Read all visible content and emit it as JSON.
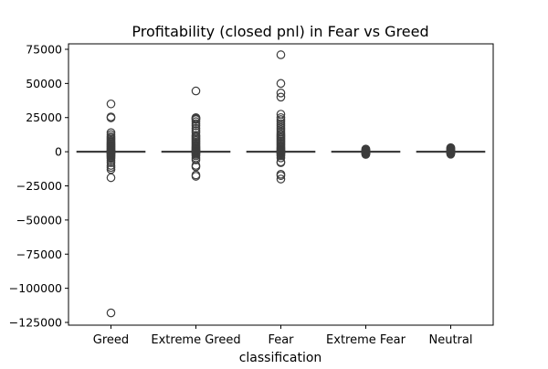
{
  "chart_data": {
    "type": "box",
    "title": "Profitability (closed pnl) in Fear vs Greed",
    "xlabel": "classification",
    "ylabel": "",
    "categories": [
      "Greed",
      "Extreme Greed",
      "Fear",
      "Extreme Fear",
      "Neutral"
    ],
    "ylim": [
      -127000,
      79000
    ],
    "y_ticks": [
      75000,
      50000,
      25000,
      0,
      -25000,
      -50000,
      -75000,
      -100000,
      -125000
    ],
    "y_tick_labels": [
      "75000",
      "50000",
      "25000",
      "0",
      "−25000",
      "−50000",
      "−75000",
      "−100000",
      "−125000"
    ],
    "grid": false,
    "legend": "none",
    "colors": {
      "box_edge": "#3d3d3d",
      "box_fill": "#3f73a6",
      "axis": "#000000"
    },
    "boxes": [
      {
        "category": "Greed",
        "q1": 0,
        "median": 0,
        "q3": 5,
        "whisker_low": -4,
        "whisker_high": 12,
        "outliers": [
          35000,
          25500,
          24800,
          14000,
          12500,
          11000,
          10000,
          9000,
          8000,
          7200,
          6500,
          5800,
          5000,
          4300,
          3600,
          3000,
          2400,
          1800,
          1200,
          800,
          500,
          300,
          -300,
          -600,
          -1000,
          -1500,
          -2000,
          -2600,
          -3200,
          -4000,
          -5000,
          -6500,
          -8000,
          -10000,
          -11500,
          -13000,
          -19000,
          -118000
        ]
      },
      {
        "category": "Extreme Greed",
        "q1": 0,
        "median": 0,
        "q3": 5,
        "whisker_low": -4,
        "whisker_high": 12,
        "outliers": [
          44500,
          25000,
          24500,
          24000,
          23500,
          22000,
          20500,
          19000,
          17000,
          15500,
          14000,
          12000,
          11000,
          10000,
          9000,
          8000,
          7000,
          6000,
          5000,
          4200,
          3500,
          2800,
          2200,
          1600,
          1000,
          600,
          300,
          -300,
          -700,
          -1200,
          -2000,
          -3000,
          -4500,
          -6000,
          -10000,
          -11000,
          -17000,
          -18000
        ]
      },
      {
        "category": "Fear",
        "q1": 0,
        "median": 0,
        "q3": 5,
        "whisker_low": -4,
        "whisker_high": 12,
        "outliers": [
          71000,
          50000,
          43000,
          40000,
          27500,
          25000,
          23500,
          22000,
          20500,
          19000,
          17500,
          16000,
          14500,
          13000,
          12000,
          11000,
          10000,
          9000,
          8000,
          7000,
          6000,
          5000,
          4000,
          3200,
          2500,
          1800,
          1200,
          700,
          300,
          -300,
          -700,
          -1200,
          -2000,
          -3000,
          -4500,
          -7500,
          -8000,
          -16500,
          -17500,
          -20000
        ]
      },
      {
        "category": "Extreme Fear",
        "q1": 0,
        "median": 0,
        "q3": 5,
        "whisker_low": -4,
        "whisker_high": 12,
        "outliers": [
          2000,
          1700,
          1400,
          1100,
          800,
          500,
          250,
          -250,
          -500,
          -800,
          -1100,
          -1400,
          -1700,
          -2000
        ]
      },
      {
        "category": "Neutral",
        "q1": 0,
        "median": 0,
        "q3": 5,
        "whisker_low": -4,
        "whisker_high": 12,
        "outliers": [
          3000,
          2600,
          2200,
          1800,
          1400,
          1000,
          600,
          300,
          -300,
          -600,
          -1000,
          -1400,
          -1800
        ]
      }
    ]
  }
}
